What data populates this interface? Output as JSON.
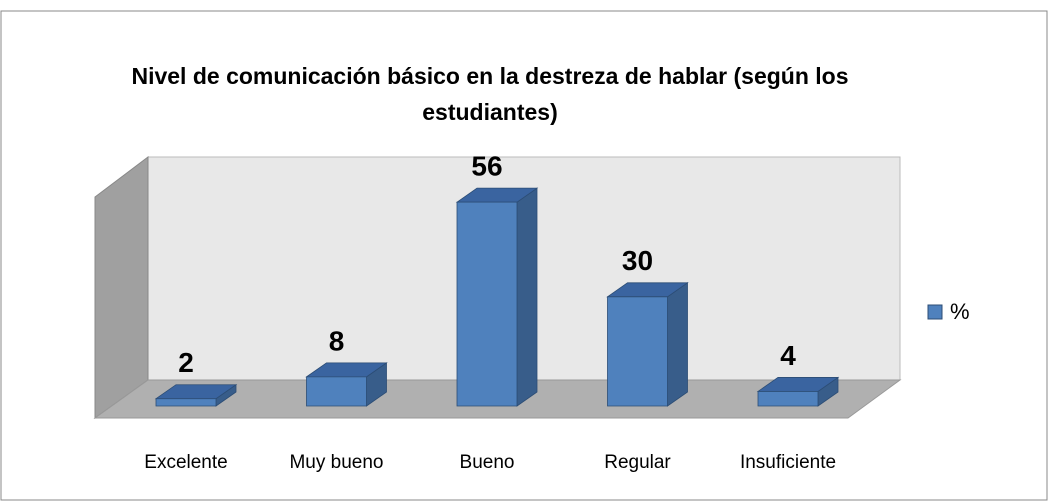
{
  "chart_data": {
    "type": "bar3d",
    "title": "Nivel de comunicación básico en la destreza de hablar (según los estudiantes)",
    "categories": [
      "Excelente",
      "Muy bueno",
      "Bueno",
      "Regular",
      "Insuficiente"
    ],
    "series": [
      {
        "name": "%",
        "color": "#4f81bd",
        "values": [
          2,
          8,
          56,
          30,
          4
        ]
      }
    ],
    "legend": "right"
  }
}
